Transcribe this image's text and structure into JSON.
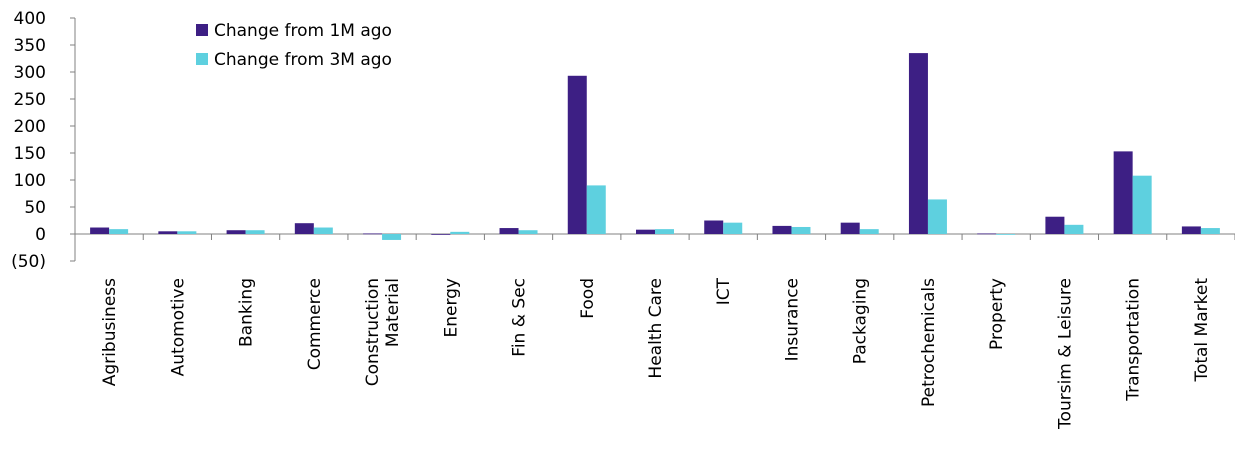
{
  "chart_data": {
    "type": "bar",
    "categories": [
      [
        "Agribusiness"
      ],
      [
        "Automotive"
      ],
      [
        "Banking"
      ],
      [
        "Commerce"
      ],
      [
        "Construction",
        "Material"
      ],
      [
        "Energy"
      ],
      [
        "Fin & Sec"
      ],
      [
        "Food"
      ],
      [
        "Health Care"
      ],
      [
        "ICT"
      ],
      [
        "Insurance"
      ],
      [
        "Packaging"
      ],
      [
        "Petrochemicals"
      ],
      [
        "Property"
      ],
      [
        "Toursim & Leisure"
      ],
      [
        "Transportation"
      ],
      [
        "Total Market"
      ]
    ],
    "series": [
      {
        "name": "Change from 1M ago",
        "color": "#3d1f84",
        "values": [
          12,
          5,
          7,
          20,
          1,
          0,
          11,
          293,
          8,
          25,
          15,
          21,
          335,
          1,
          32,
          153,
          14
        ]
      },
      {
        "name": "Change from 3M ago",
        "color": "#5ed0df",
        "values": [
          9,
          5,
          7,
          12,
          -11,
          4,
          7,
          90,
          9,
          21,
          13,
          9,
          64,
          0,
          17,
          108,
          11
        ]
      }
    ],
    "ylim": [
      -50,
      400
    ],
    "yticks": [
      -50,
      0,
      50,
      100,
      150,
      200,
      250,
      300,
      350,
      400
    ],
    "ytick_labels": [
      "(50)",
      "0",
      "50",
      "100",
      "150",
      "200",
      "250",
      "300",
      "350",
      "400"
    ],
    "legend_position": "top-left",
    "grid": false
  }
}
